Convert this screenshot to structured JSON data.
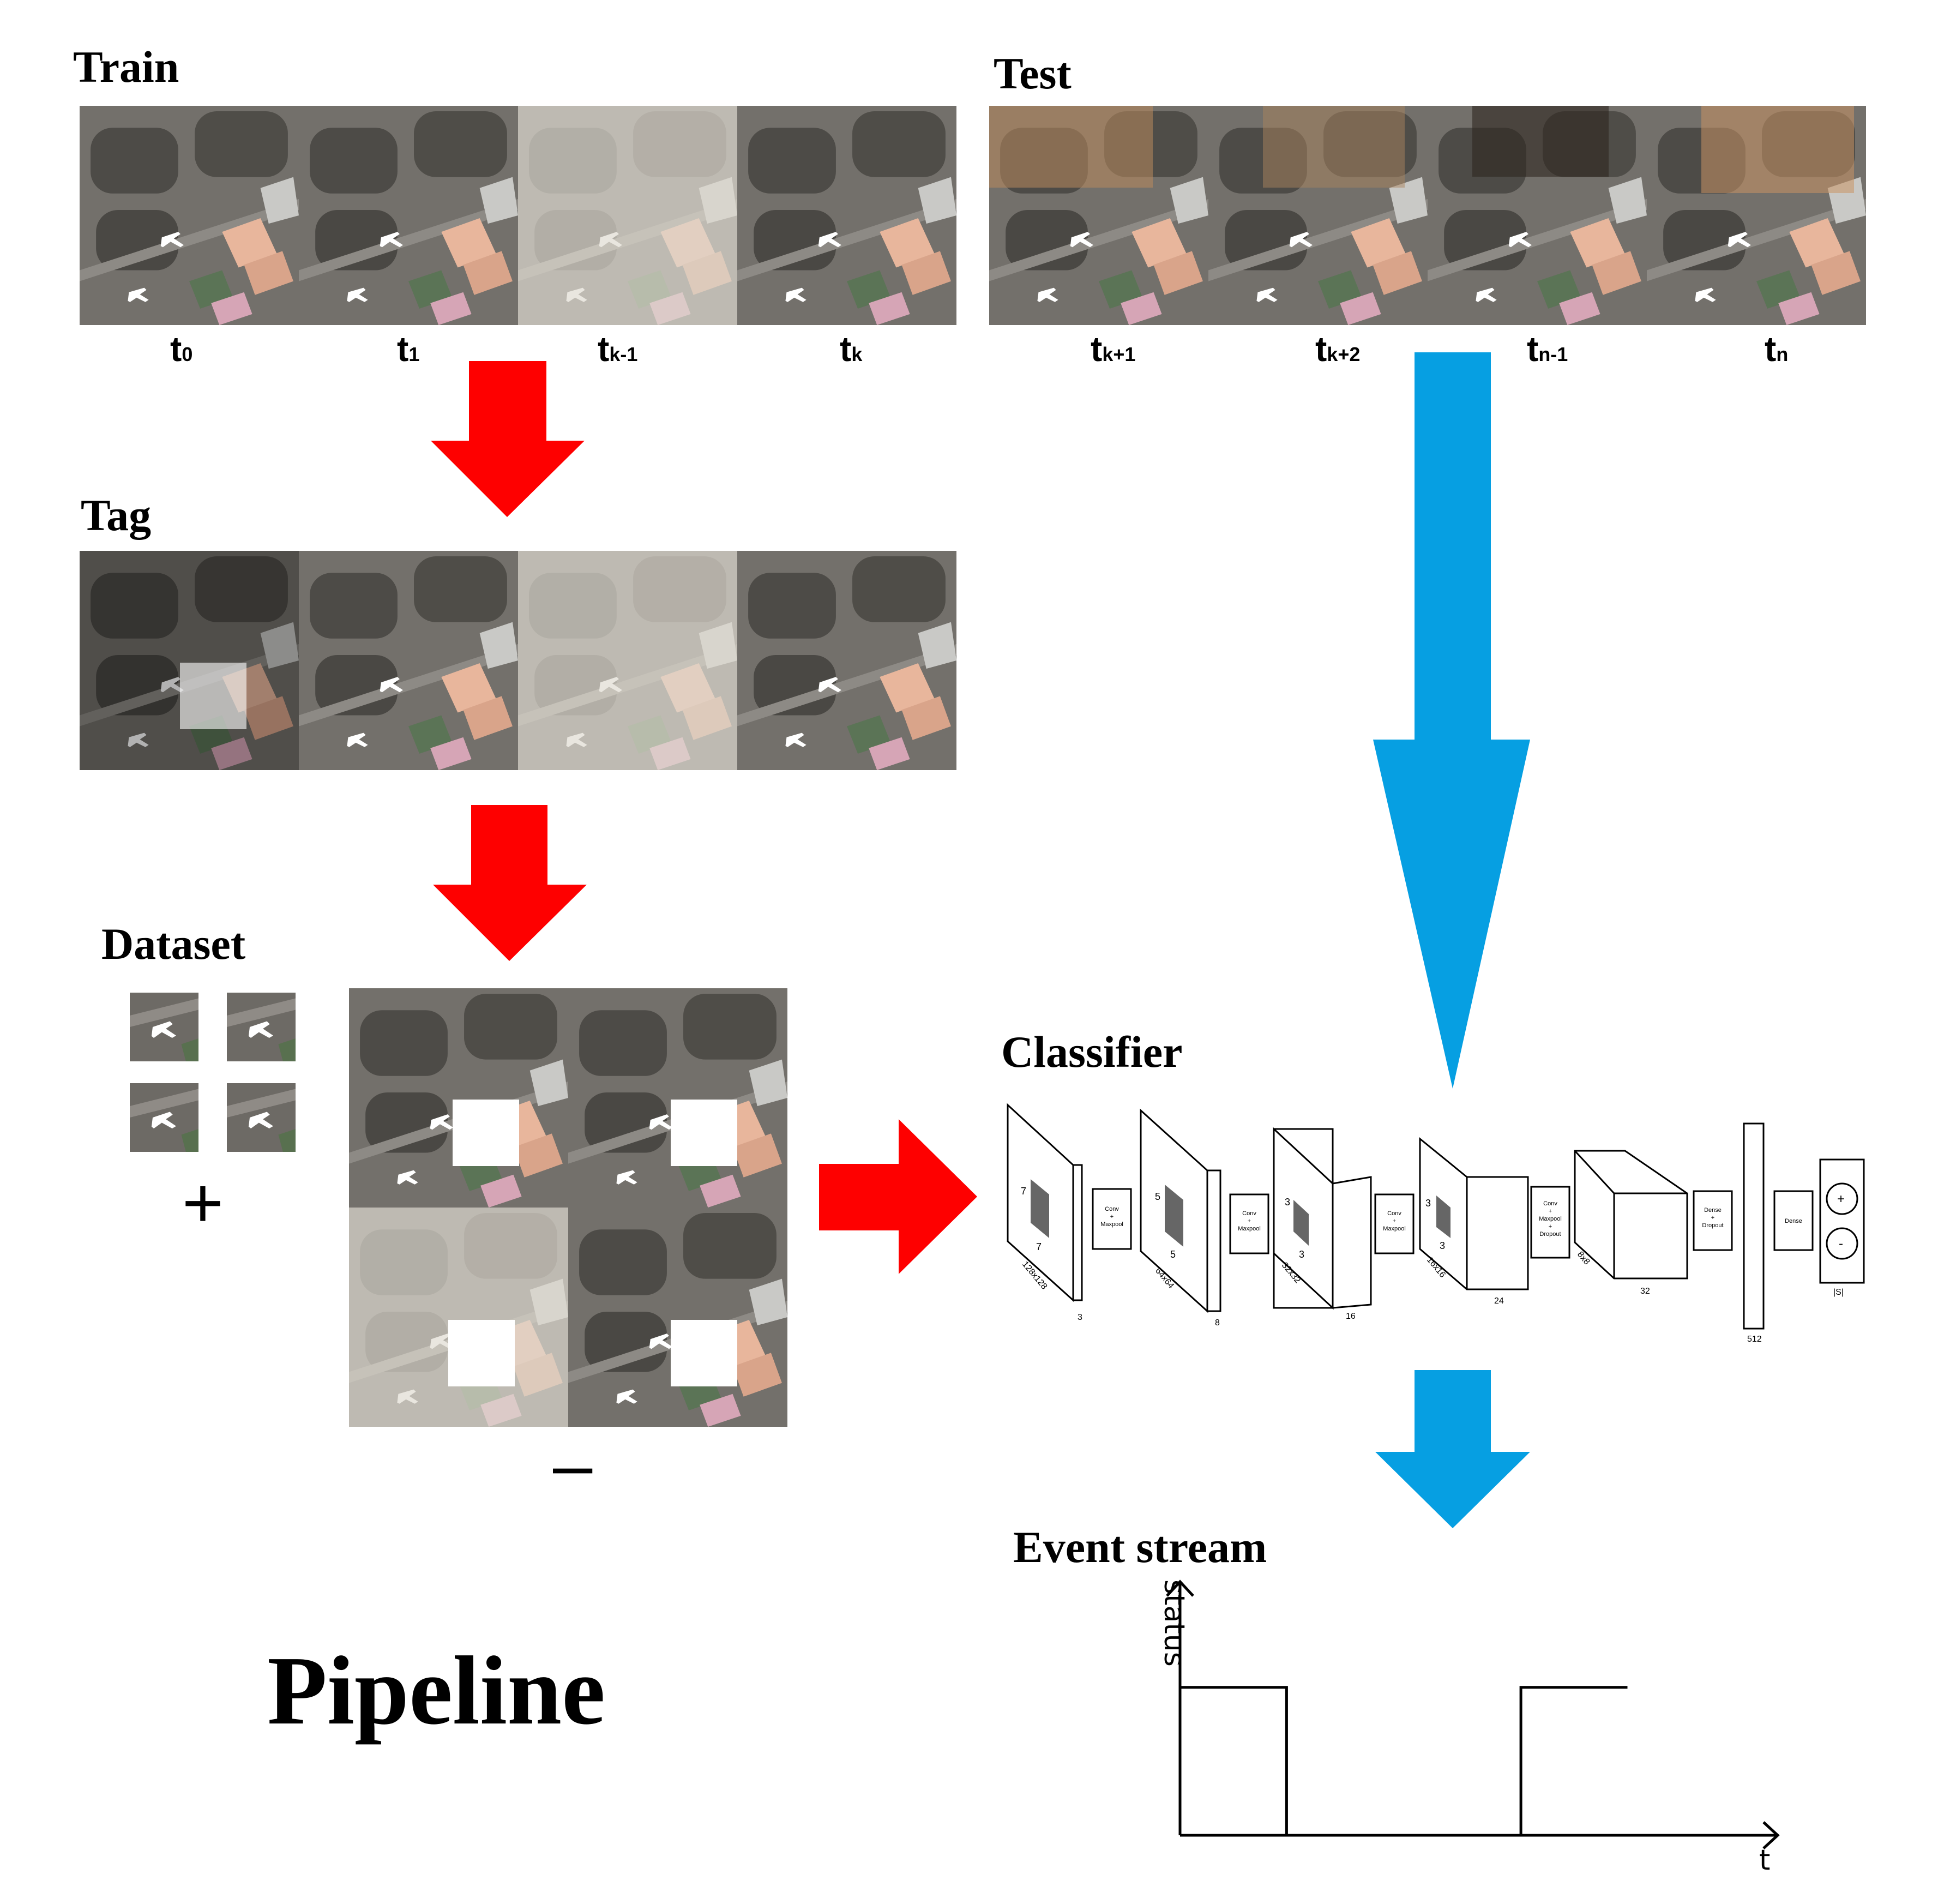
{
  "sections": {
    "train": "Train",
    "test": "Test",
    "tag": "Tag",
    "dataset": "Dataset",
    "classifier": "Classifier",
    "event_stream": "Event stream"
  },
  "title": "Pipeline",
  "train_times": [
    {
      "base": "t",
      "sub": "0"
    },
    {
      "base": "t",
      "sub": "1"
    },
    {
      "base": "t",
      "sub": "k-1"
    },
    {
      "base": "t",
      "sub": "k"
    }
  ],
  "test_times": [
    {
      "base": "t",
      "sub": "k+1"
    },
    {
      "base": "t",
      "sub": "k+2"
    },
    {
      "base": "t",
      "sub": "n-1"
    },
    {
      "base": "t",
      "sub": "n"
    }
  ],
  "dataset": {
    "positive_sign": "+",
    "negative_sign": "–"
  },
  "classifier": {
    "inputs": [
      {
        "size": "128x128",
        "channels": "3",
        "kernel": "7"
      },
      {
        "size": "64x64",
        "channels": "8",
        "kernel": "5"
      },
      {
        "size": "32x32",
        "channels": "16",
        "kernel": "3"
      },
      {
        "size": "16x16",
        "channels": "24",
        "kernel": "3"
      },
      {
        "size": "8x8",
        "channels": "32"
      }
    ],
    "ops": [
      [
        "Conv",
        "+",
        "Maxpool"
      ],
      [
        "Conv",
        "+",
        "Maxpool"
      ],
      [
        "Conv",
        "+",
        "Maxpool"
      ],
      [
        "Conv",
        "+",
        "Maxpool",
        "+",
        "Dropout"
      ],
      [
        "Dense",
        "+",
        "Dropout"
      ],
      [
        "Dense"
      ]
    ],
    "dense_units": "512",
    "output_label": "|S|",
    "output_classes": [
      "+",
      "-"
    ]
  },
  "event_chart": {
    "ylabel": "status",
    "xlabel": "t"
  },
  "chart_data": {
    "type": "line",
    "title": "Event stream",
    "xlabel": "t",
    "ylabel": "status",
    "x": [
      0,
      1.0,
      1.0,
      3.2,
      3.2,
      4.2
    ],
    "values": [
      1,
      1,
      0,
      0,
      1,
      1
    ],
    "xlim": [
      0,
      5.6
    ],
    "ylim": [
      0,
      1.7
    ],
    "grid": false
  },
  "colors": {
    "red_arrow": "#fe0000",
    "blue_arrow": "#069fe2",
    "tarmac": "#6e6b66",
    "grass": "#545546",
    "hangar_peach": "#e8b69c"
  }
}
